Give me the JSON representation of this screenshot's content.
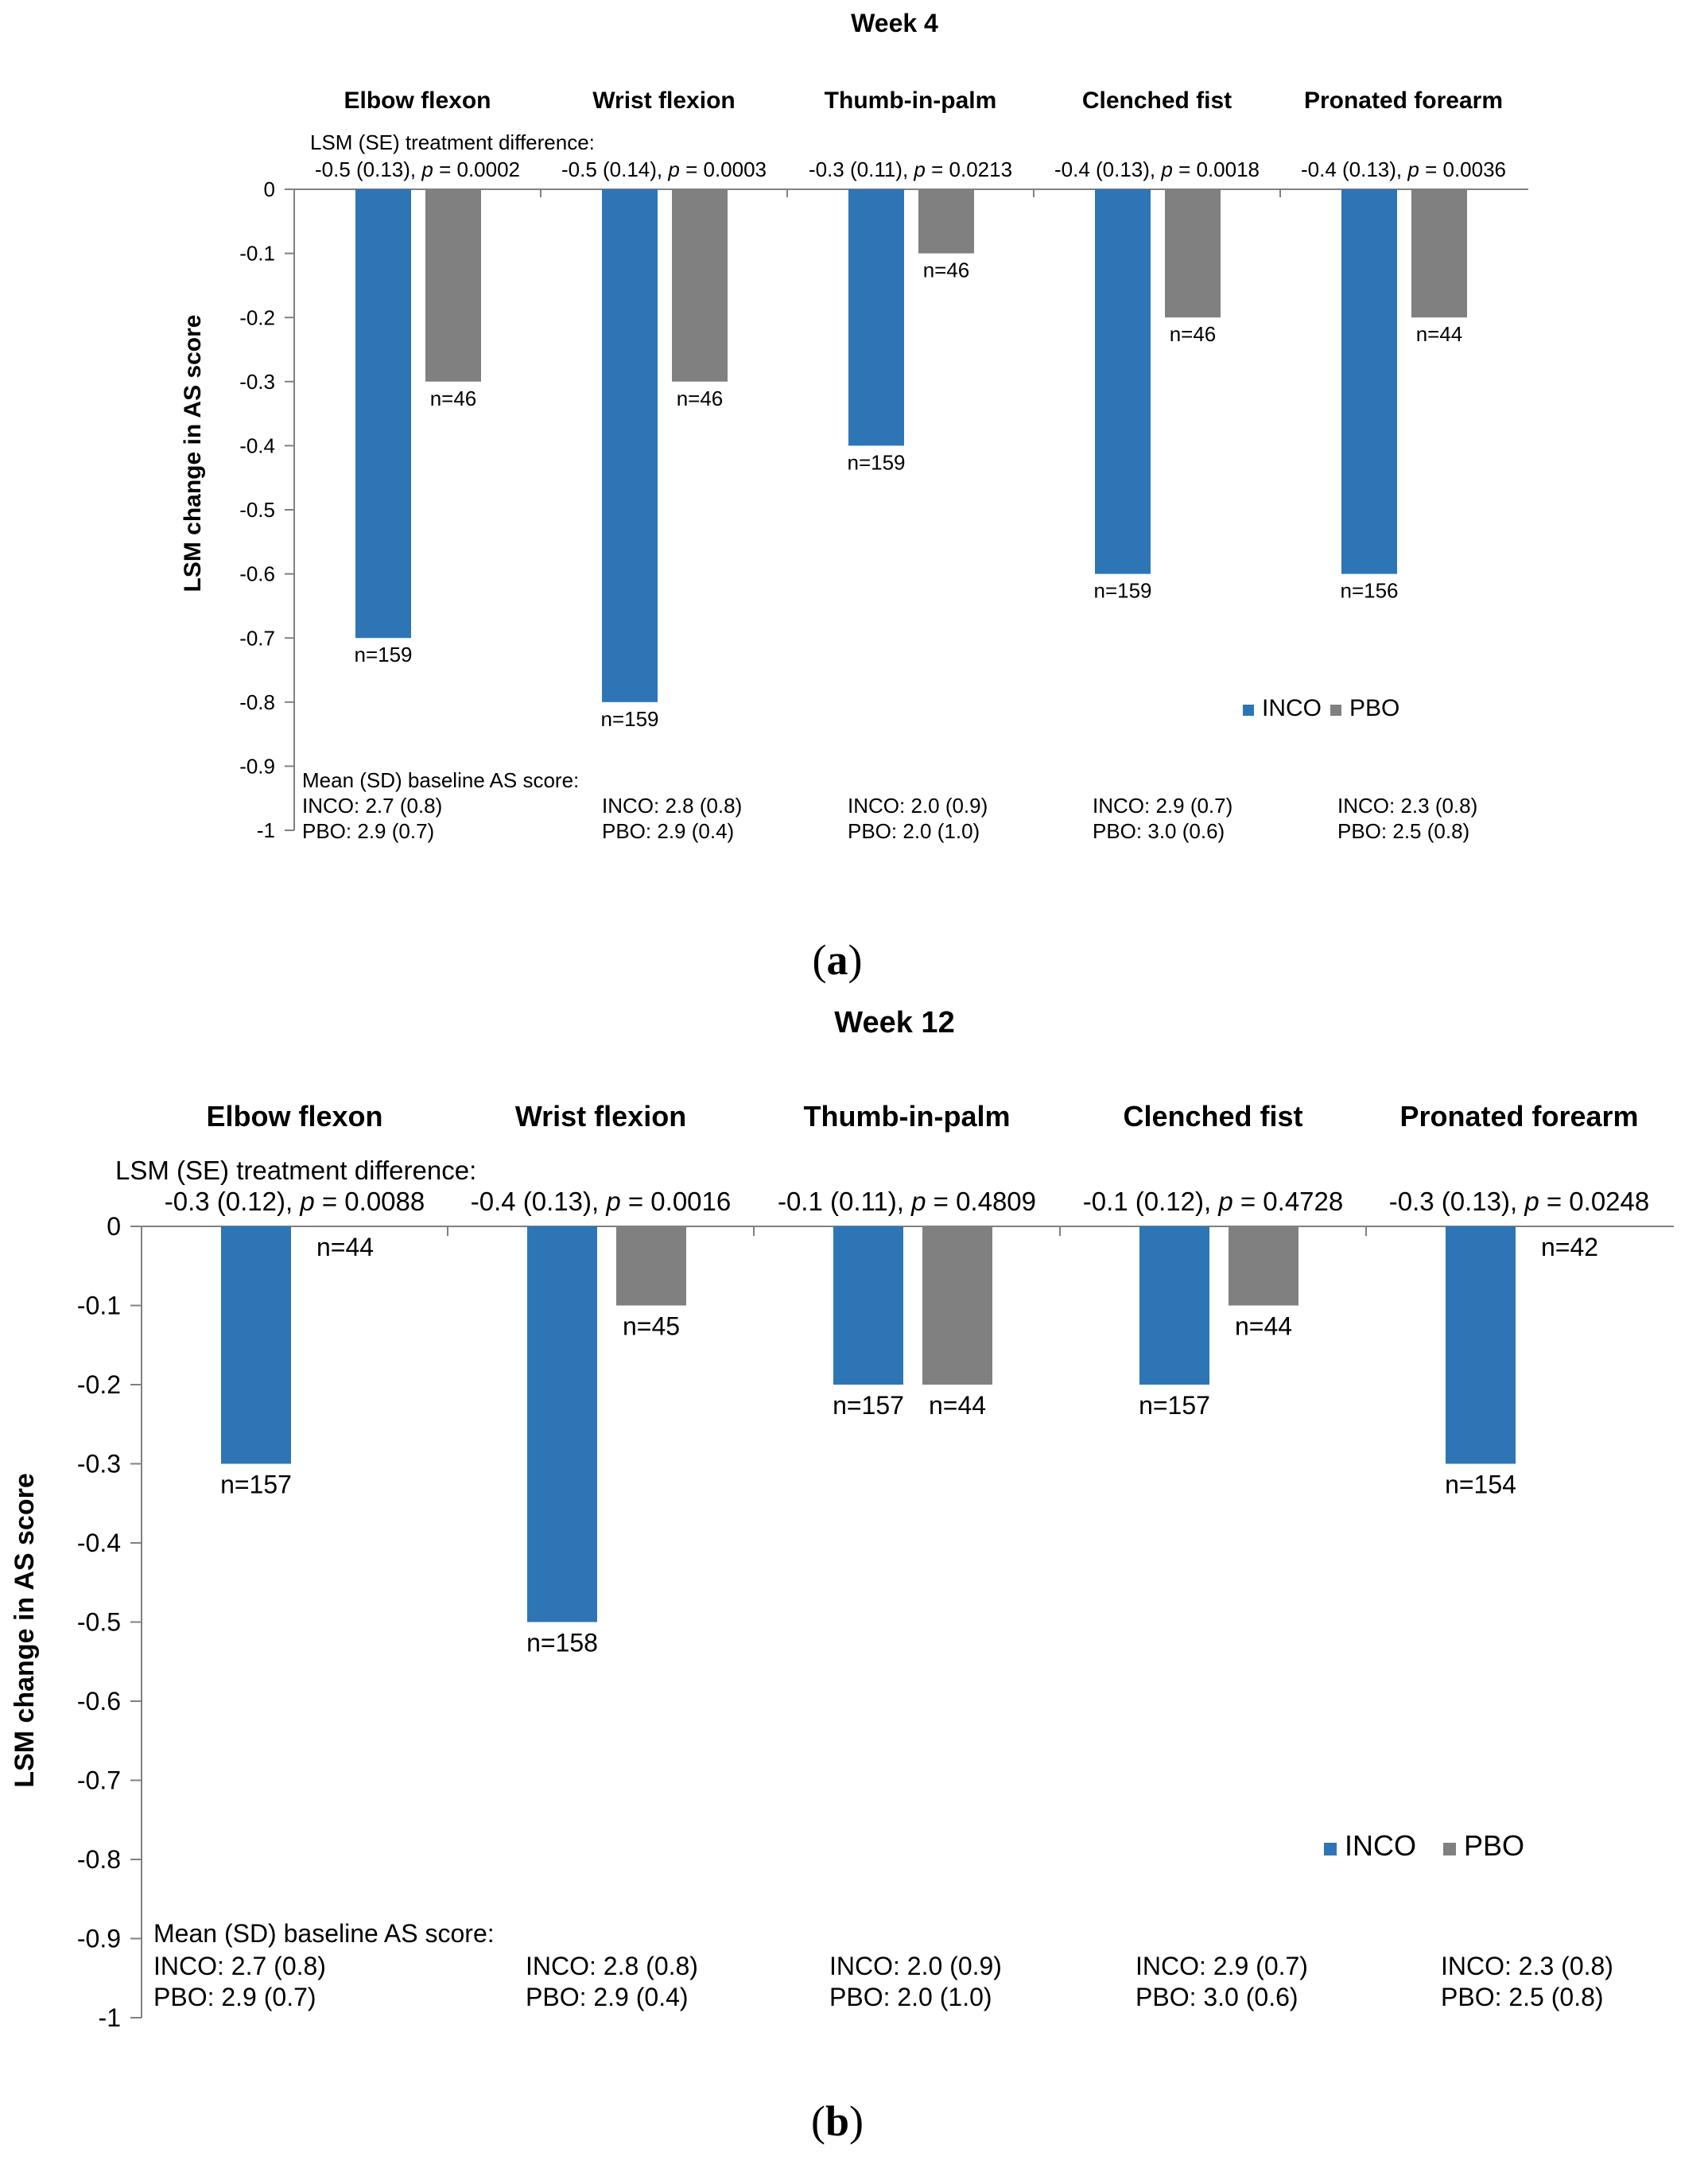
{
  "colors": {
    "inco": "#2e75b6",
    "pbo": "#808080",
    "axis": "#808080",
    "text": "#000000"
  },
  "panel_labels": {
    "a": "a",
    "b": "b"
  },
  "chart_data": [
    {
      "type": "bar",
      "id": "a",
      "title": "Week 4",
      "ylabel": "LSM change in AS score",
      "ylim": [
        -1,
        0
      ],
      "yticks": [
        0,
        -0.1,
        -0.2,
        -0.3,
        -0.4,
        -0.5,
        -0.6,
        -0.7,
        -0.8,
        -0.9,
        -1
      ],
      "ytick_labels": [
        "0",
        "-0.1",
        "-0.2",
        "-0.3",
        "-0.4",
        "-0.5",
        "-0.6",
        "-0.7",
        "-0.8",
        "-0.9",
        "-1"
      ],
      "categories": [
        "Elbow flexon",
        "Wrist flexion",
        "Thumb-in-palm",
        "Clenched fist",
        "Pronated forearm"
      ],
      "series": [
        {
          "name": "INCO",
          "values": [
            -0.7,
            -0.8,
            -0.4,
            -0.6,
            -0.6
          ],
          "n_labels": [
            "n=159",
            "n=159",
            "n=159",
            "n=159",
            "n=156"
          ]
        },
        {
          "name": "PBO",
          "values": [
            -0.3,
            -0.3,
            -0.1,
            -0.2,
            -0.2
          ],
          "n_labels": [
            "n=46",
            "n=46",
            "n=46",
            "n=46",
            "n=44"
          ]
        }
      ],
      "legend": {
        "position": "lower-right",
        "entries": [
          "INCO",
          "PBO"
        ]
      },
      "difference_header": "LSM (SE) treatment difference:",
      "differences": [
        {
          "est": "-0.5 (0.13), ",
          "p": "p",
          "val": " = 0.0002"
        },
        {
          "est": "-0.5 (0.14), ",
          "p": "p",
          "val": " = 0.0003"
        },
        {
          "est": "-0.3 (0.11), ",
          "p": "p",
          "val": " = 0.0213"
        },
        {
          "est": "-0.4 (0.13), ",
          "p": "p",
          "val": " = 0.0018"
        },
        {
          "est": "-0.4 (0.13), ",
          "p": "p",
          "val": " = 0.0036"
        }
      ],
      "baseline_header": "Mean (SD) baseline AS score:",
      "baseline": [
        {
          "inco": "INCO: 2.7 (0.8)",
          "pbo": "PBO: 2.9 (0.7)"
        },
        {
          "inco": "INCO: 2.8 (0.8)",
          "pbo": "PBO: 2.9 (0.4)"
        },
        {
          "inco": "INCO: 2.0 (0.9)",
          "pbo": "PBO: 2.0 (1.0)"
        },
        {
          "inco": "INCO: 2.9 (0.7)",
          "pbo": "PBO: 3.0 (0.6)"
        },
        {
          "inco": "INCO: 2.3 (0.8)",
          "pbo": "PBO: 2.5 (0.8)"
        }
      ]
    },
    {
      "type": "bar",
      "id": "b",
      "title": "Week 12",
      "ylabel": "LSM change in AS score",
      "ylim": [
        -1,
        0
      ],
      "yticks": [
        0,
        -0.1,
        -0.2,
        -0.3,
        -0.4,
        -0.5,
        -0.6,
        -0.7,
        -0.8,
        -0.9,
        -1
      ],
      "ytick_labels": [
        "0",
        "-0.1",
        "-0.2",
        "-0.3",
        "-0.4",
        "-0.5",
        "-0.6",
        "-0.7",
        "-0.8",
        "-0.9",
        "-1"
      ],
      "categories": [
        "Elbow flexon",
        "Wrist flexion",
        "Thumb-in-palm",
        "Clenched fist",
        "Pronated forearm"
      ],
      "series": [
        {
          "name": "INCO",
          "values": [
            -0.3,
            -0.5,
            -0.2,
            -0.2,
            -0.3
          ],
          "n_labels": [
            "n=157",
            "n=158",
            "n=157",
            "n=157",
            "n=154"
          ]
        },
        {
          "name": "PBO",
          "values": [
            0,
            -0.1,
            -0.2,
            -0.1,
            0
          ],
          "n_labels": [
            "n=44",
            "n=45",
            "n=44",
            "n=44",
            "n=42"
          ]
        }
      ],
      "legend": {
        "position": "lower-right",
        "entries": [
          "INCO",
          "PBO"
        ]
      },
      "difference_header": "LSM (SE) treatment difference:",
      "differences": [
        {
          "est": "-0.3 (0.12), ",
          "p": "p",
          "val": " = 0.0088"
        },
        {
          "est": "-0.4 (0.13), ",
          "p": "p",
          "val": " = 0.0016"
        },
        {
          "est": "-0.1 (0.11), ",
          "p": "p",
          "val": " = 0.4809"
        },
        {
          "est": "-0.1 (0.12), ",
          "p": "p",
          "val": " = 0.4728"
        },
        {
          "est": "-0.3 (0.13), ",
          "p": "p",
          "val": " = 0.0248"
        }
      ],
      "baseline_header": "Mean (SD) baseline AS score:",
      "baseline": [
        {
          "inco": "INCO: 2.7 (0.8)",
          "pbo": "PBO: 2.9 (0.7)"
        },
        {
          "inco": "INCO: 2.8 (0.8)",
          "pbo": "PBO: 2.9 (0.4)"
        },
        {
          "inco": "INCO: 2.0 (0.9)",
          "pbo": "PBO: 2.0 (1.0)"
        },
        {
          "inco": "INCO: 2.9 (0.7)",
          "pbo": "PBO: 3.0 (0.6)"
        },
        {
          "inco": "INCO: 2.3 (0.8)",
          "pbo": "PBO: 2.5 (0.8)"
        }
      ]
    }
  ]
}
